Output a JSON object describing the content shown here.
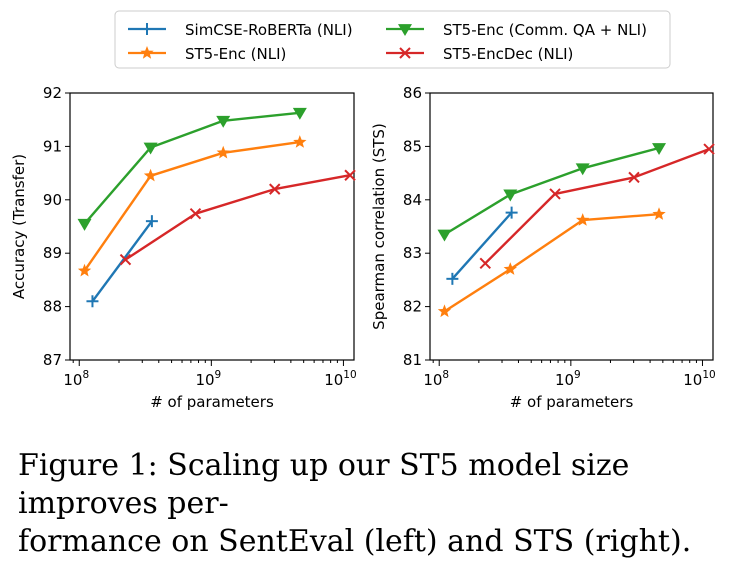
{
  "legend": [
    {
      "label": "SimCSE-RoBERTa (NLI)",
      "color": "#1f77b4",
      "marker": "plus"
    },
    {
      "label": "ST5-Enc (NLI)",
      "color": "#ff7f0e",
      "marker": "star"
    },
    {
      "label": "ST5-Enc (Comm. QA + NLI)",
      "color": "#2ca02c",
      "marker": "triangle-down"
    },
    {
      "label": "ST5-EncDec (NLI)",
      "color": "#d62728",
      "marker": "x"
    }
  ],
  "chart_data": [
    {
      "type": "line",
      "xlabel": "# of parameters",
      "ylabel": "Accuracy (Transfer)",
      "xscale": "log",
      "xlim_log10": [
        7.93,
        10.08
      ],
      "xticks": [
        {
          "base": "10",
          "exp": "8"
        },
        {
          "base": "10",
          "exp": "9"
        },
        {
          "base": "10",
          "exp": "10"
        }
      ],
      "ylim": [
        87,
        92
      ],
      "yticks": [
        "87",
        "88",
        "89",
        "90",
        "91",
        "92"
      ],
      "series": [
        {
          "name": "SimCSE-RoBERTa (NLI)",
          "x_log10": [
            8.1,
            8.55
          ],
          "y": [
            88.1,
            89.6
          ]
        },
        {
          "name": "ST5-Enc (NLI)",
          "x_log10": [
            8.04,
            8.54,
            9.09,
            9.67
          ],
          "y": [
            88.67,
            90.45,
            90.88,
            91.08
          ]
        },
        {
          "name": "ST5-Enc (Comm. QA + NLI)",
          "x_log10": [
            8.04,
            8.54,
            9.09,
            9.67
          ],
          "y": [
            89.55,
            90.98,
            91.48,
            91.63
          ]
        },
        {
          "name": "ST5-EncDec (NLI)",
          "x_log10": [
            8.35,
            8.88,
            9.48,
            10.05
          ],
          "y": [
            88.88,
            89.74,
            90.2,
            90.46
          ]
        }
      ]
    },
    {
      "type": "line",
      "xlabel": "# of parameters",
      "ylabel": "Spearman correlation (STS)",
      "xscale": "log",
      "xlim_log10": [
        7.93,
        10.08
      ],
      "xticks": [
        {
          "base": "10",
          "exp": "8"
        },
        {
          "base": "10",
          "exp": "9"
        },
        {
          "base": "10",
          "exp": "10"
        }
      ],
      "ylim": [
        81,
        86
      ],
      "yticks": [
        "81",
        "82",
        "83",
        "84",
        "85",
        "86"
      ],
      "series": [
        {
          "name": "SimCSE-RoBERTa (NLI)",
          "x_log10": [
            8.1,
            8.55
          ],
          "y": [
            82.52,
            83.76
          ]
        },
        {
          "name": "ST5-Enc (NLI)",
          "x_log10": [
            8.04,
            8.54,
            9.09,
            9.67
          ],
          "y": [
            81.91,
            82.7,
            83.62,
            83.73
          ]
        },
        {
          "name": "ST5-Enc (Comm. QA + NLI)",
          "x_log10": [
            8.04,
            8.54,
            9.09,
            9.67
          ],
          "y": [
            83.35,
            84.1,
            84.59,
            84.97
          ]
        },
        {
          "name": "ST5-EncDec (NLI)",
          "x_log10": [
            8.35,
            8.88,
            9.48,
            10.05
          ],
          "y": [
            82.81,
            84.11,
            84.42,
            84.95
          ]
        }
      ]
    }
  ],
  "caption": {
    "line1": "Figure 1: Scaling up our ST5 model size improves per-",
    "line2": "formance on SentEval (left) and STS (right)."
  }
}
